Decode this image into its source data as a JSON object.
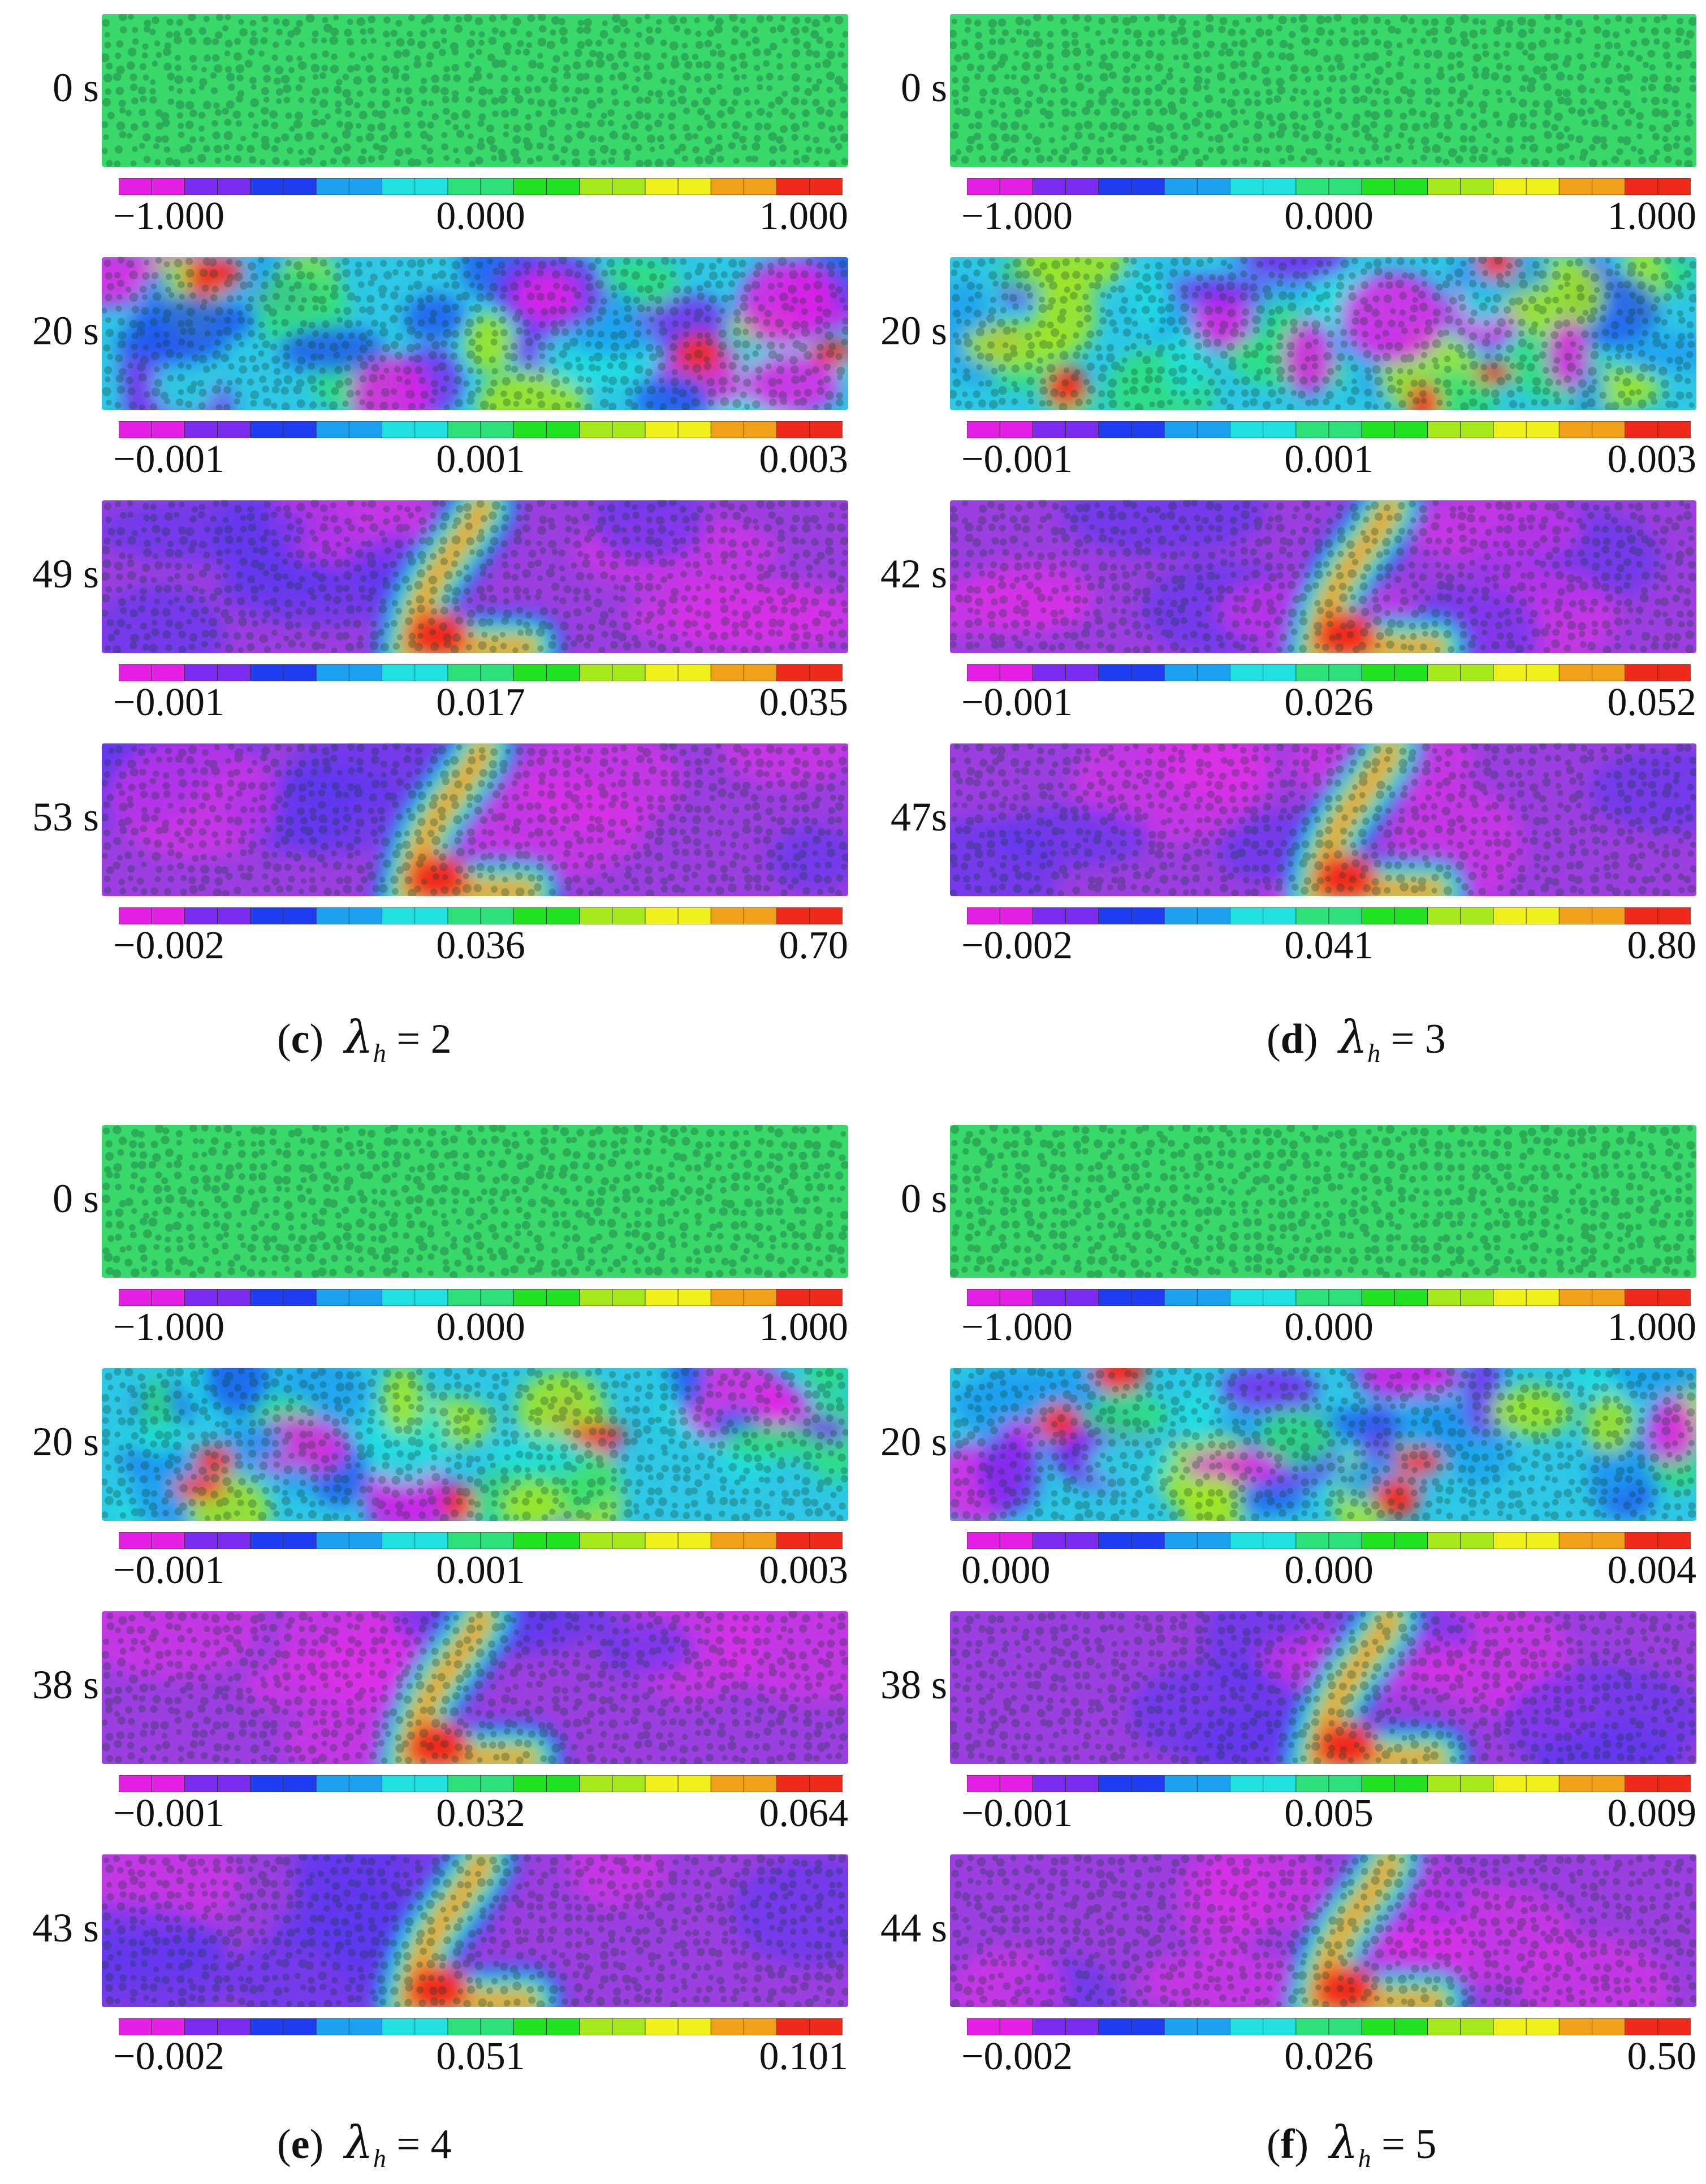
{
  "quadrants": [
    {
      "id": "c",
      "caption": {
        "letter": "c",
        "symbol": "λ",
        "subscript": "h",
        "value": "= 2"
      },
      "rows": [
        {
          "time": "0 s",
          "field": "uniform",
          "ticks": [
            "−1.000",
            "0.000",
            "1.000"
          ]
        },
        {
          "time": "20 s",
          "field": "mixed",
          "ticks": [
            "−0.001",
            "0.001",
            "0.003"
          ]
        },
        {
          "time": "49 s",
          "field": "band",
          "ticks": [
            "−0.001",
            "0.017",
            "0.035"
          ]
        },
        {
          "time": "53 s",
          "field": "band",
          "ticks": [
            "−0.002",
            "0.036",
            "0.70"
          ]
        }
      ]
    },
    {
      "id": "d",
      "caption": {
        "letter": "d",
        "symbol": "λ",
        "subscript": "h",
        "value": "= 3"
      },
      "rows": [
        {
          "time": "0 s",
          "field": "uniform",
          "ticks": [
            "−1.000",
            "0.000",
            "1.000"
          ]
        },
        {
          "time": "20 s",
          "field": "mixed",
          "ticks": [
            "−0.001",
            "0.001",
            "0.003"
          ]
        },
        {
          "time": "42 s",
          "field": "band",
          "ticks": [
            "−0.001",
            "0.026",
            "0.052"
          ]
        },
        {
          "time": "47s",
          "field": "band",
          "ticks": [
            "−0.002",
            "0.041",
            "0.80"
          ]
        }
      ]
    },
    {
      "id": "e",
      "caption": {
        "letter": "e",
        "symbol": "λ",
        "subscript": "h",
        "value": "= 4"
      },
      "rows": [
        {
          "time": "0 s",
          "field": "uniform",
          "ticks": [
            "−1.000",
            "0.000",
            "1.000"
          ]
        },
        {
          "time": "20 s",
          "field": "mixed",
          "ticks": [
            "−0.001",
            "0.001",
            "0.003"
          ]
        },
        {
          "time": "38 s",
          "field": "band",
          "ticks": [
            "−0.001",
            "0.032",
            "0.064"
          ]
        },
        {
          "time": "43 s",
          "field": "band",
          "ticks": [
            "−0.002",
            "0.051",
            "0.101"
          ]
        }
      ]
    },
    {
      "id": "f",
      "caption": {
        "letter": "f",
        "symbol": "λ",
        "subscript": "h",
        "value": "= 5"
      },
      "rows": [
        {
          "time": "0 s",
          "field": "uniform",
          "ticks": [
            "−1.000",
            "0.000",
            "1.000"
          ]
        },
        {
          "time": "20 s",
          "field": "mixed",
          "ticks": [
            "0.000",
            "0.000",
            "0.004"
          ]
        },
        {
          "time": "38 s",
          "field": "band",
          "ticks": [
            "−0.001",
            "0.005",
            "0.009"
          ]
        },
        {
          "time": "44 s",
          "field": "band",
          "ticks": [
            "−0.002",
            "0.026",
            "0.50"
          ]
        }
      ]
    }
  ],
  "colors": {
    "uniform_field": "#39d86a",
    "low_field": "#9b3fe0",
    "colormap": [
      "#e51fe5",
      "#7b2cf0",
      "#1f3cf0",
      "#1ea0f0",
      "#22e0e0",
      "#2ee07a",
      "#22e022",
      "#a6e81a",
      "#f0f01a",
      "#f0a01a",
      "#f02a1a"
    ]
  }
}
